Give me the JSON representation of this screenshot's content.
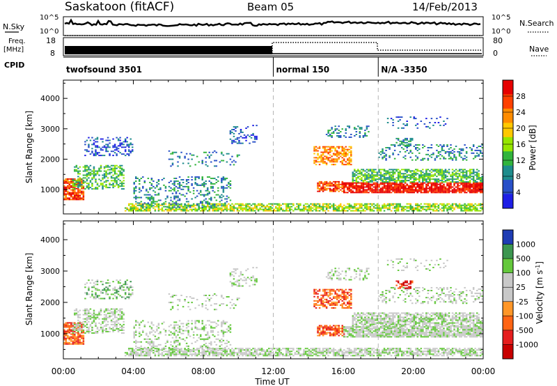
{
  "header": {
    "station": "Saskatoon (fitACF)",
    "beam": "Beam 05",
    "date": "14/Feb/2013"
  },
  "side_labels": {
    "nsky": "N.Sky",
    "freq_line1": "Freq.",
    "freq_line2": "[MHz]",
    "cpid": "CPID",
    "nsearch": "N.Search",
    "nave": "Nave"
  },
  "strip_ticks": {
    "noise_left": [
      "10^5",
      "10^0"
    ],
    "noise_right": [
      "10^5",
      "10^0"
    ],
    "freq_left": [
      "18",
      "8"
    ],
    "nave_right": [
      "80",
      "0"
    ]
  },
  "cpid_segments": [
    {
      "label": "twofsound 3501",
      "start_hour": 0
    },
    {
      "label": "normal 150",
      "start_hour": 12
    },
    {
      "label": "N/A -3350",
      "start_hour": 18
    }
  ],
  "chart_data": [
    {
      "type": "heatmap",
      "name": "power_panel",
      "ylabel": "Slant Range [km]",
      "ylim": [
        200,
        4600
      ],
      "yticks": [
        1000,
        2000,
        3000,
        4000
      ],
      "xlim_hours": [
        0,
        24
      ],
      "colorbar": {
        "label": "Power [dB]",
        "ticks": [
          "28",
          "24",
          "20",
          "16",
          "12",
          "8",
          "4"
        ],
        "colors": [
          "#e60000",
          "#ff4000",
          "#ff8c00",
          "#ffc800",
          "#96e600",
          "#32b43c",
          "#1e8c8c",
          "#2850c8",
          "#1e1ee6"
        ]
      }
    },
    {
      "type": "heatmap",
      "name": "velocity_panel",
      "ylabel": "Slant Range [km]",
      "ylim": [
        200,
        4600
      ],
      "yticks": [
        1000,
        2000,
        3000,
        4000
      ],
      "xlim_hours": [
        0,
        24
      ],
      "colorbar": {
        "label": "Velocity [m s",
        "label_sup": "-1",
        "label_close": "]",
        "ticks": [
          "1000",
          "500",
          "100",
          "25",
          "-25",
          "-100",
          "-500",
          "-1000"
        ],
        "colors": [
          "#1e3cb4",
          "#3c9650",
          "#64c83c",
          "#c8c8c8",
          "#c8c8c8",
          "#ff9628",
          "#ff6414",
          "#e61e1e",
          "#c80000"
        ]
      }
    }
  ],
  "xaxis": {
    "ticks": [
      "00:00",
      "04:00",
      "08:00",
      "12:00",
      "16:00",
      "20:00",
      "00:00"
    ],
    "label": "Time UT"
  }
}
